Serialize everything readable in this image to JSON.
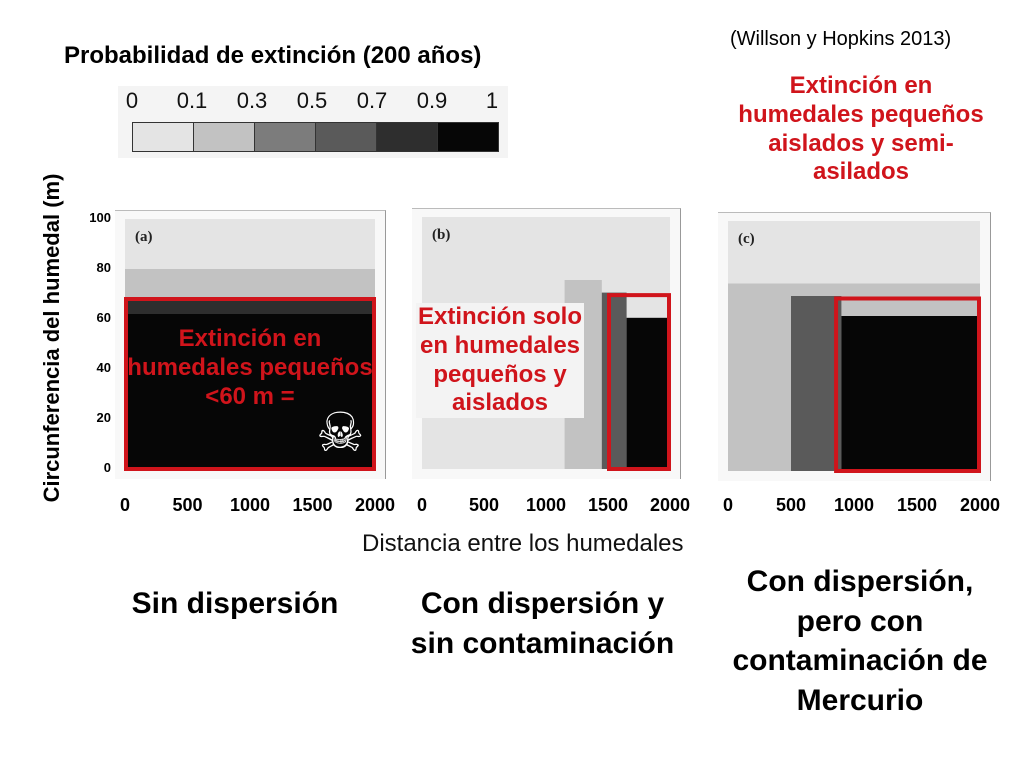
{
  "citation": "(Willson y Hopkins 2013)",
  "legend": {
    "title": "Probabilidad de extinción (200 años)",
    "ticks": [
      "0",
      "0.1",
      "0.3",
      "0.5",
      "0.7",
      "0.9",
      "1"
    ],
    "colors": [
      "#e4e4e4",
      "#c2c2c2",
      "#7c7c7c",
      "#5a5a5a",
      "#2e2e2e",
      "#060606"
    ]
  },
  "chart_data": [
    {
      "type": "heatmap",
      "panel_label": "(a)",
      "xlabel": "Distancia entre los humedales",
      "ylabel": "Circunferencia del humedal (m)",
      "xlim": [
        0,
        2000
      ],
      "ylim": [
        0,
        100
      ],
      "x_ticks": [
        "0",
        "500",
        "1000",
        "1500",
        "2000"
      ],
      "y_ticks": [
        "0",
        "20",
        "40",
        "60",
        "80",
        "100"
      ],
      "regions": [
        {
          "x": [
            0,
            2000
          ],
          "y": [
            0,
            62
          ],
          "probability": 1.0
        },
        {
          "x": [
            0,
            2000
          ],
          "y": [
            62,
            68
          ],
          "probability": 0.8
        },
        {
          "x": [
            0,
            2000
          ],
          "y": [
            68,
            80
          ],
          "probability": 0.2
        },
        {
          "x": [
            0,
            2000
          ],
          "y": [
            80,
            100
          ],
          "probability": 0.05
        }
      ],
      "highlight": {
        "x": [
          0,
          2000
        ],
        "y": [
          0,
          68
        ]
      },
      "annotation": "Extinción en humedales pequeños <60 m =",
      "condition": "Sin dispersión"
    },
    {
      "type": "heatmap",
      "panel_label": "(b)",
      "xlim": [
        0,
        2000
      ],
      "ylim": [
        0,
        100
      ],
      "x_ticks": [
        "0",
        "500",
        "1000",
        "1500",
        "2000"
      ],
      "regions": [
        {
          "x": [
            0,
            2000
          ],
          "y": [
            0,
            100
          ],
          "probability": 0.05
        },
        {
          "x": [
            1150,
            1450
          ],
          "y": [
            0,
            75
          ],
          "probability": 0.2
        },
        {
          "x": [
            1450,
            1650
          ],
          "y": [
            0,
            70
          ],
          "probability": 0.5
        },
        {
          "x": [
            1650,
            2000
          ],
          "y": [
            0,
            60
          ],
          "probability": 1.0
        }
      ],
      "highlight": {
        "x": [
          1500,
          2000
        ],
        "y": [
          0,
          69
        ]
      },
      "annotation": "Extinción solo en humedales pequeños y aislados",
      "condition": "Con dispersión y sin contaminación"
    },
    {
      "type": "heatmap",
      "panel_label": "(c)",
      "xlim": [
        0,
        2000
      ],
      "ylim": [
        0,
        100
      ],
      "x_ticks": [
        "0",
        "500",
        "1000",
        "1500",
        "2000"
      ],
      "regions": [
        {
          "x": [
            0,
            2000
          ],
          "y": [
            0,
            100
          ],
          "probability": 0.05
        },
        {
          "x": [
            0,
            2000
          ],
          "y": [
            0,
            75
          ],
          "probability": 0.2
        },
        {
          "x": [
            500,
            900
          ],
          "y": [
            0,
            70
          ],
          "probability": 0.5
        },
        {
          "x": [
            900,
            2000
          ],
          "y": [
            0,
            62
          ],
          "probability": 1.0
        }
      ],
      "highlight": {
        "x": [
          850,
          2000
        ],
        "y": [
          0,
          69
        ]
      },
      "annotation": "Extinción en humedales pequeños aislados y semi-asilados",
      "condition": "Con dispersión, pero con contaminación de Mercurio"
    }
  ],
  "annotations": {
    "a": "Extinción en humedales pequeños <60 m =",
    "b": "Extinción solo en humedales pequeños y aislados",
    "c": "Extinción en humedales pequeños aislados y semi-asilados",
    "skull_icon": "skull-crossbones-icon",
    "highlight_color": "#d0141b"
  },
  "conditions": {
    "a": "Sin dispersión",
    "b": "Con dispersión y sin contaminación",
    "c": "Con dispersión, pero con contaminación de Mercurio"
  }
}
